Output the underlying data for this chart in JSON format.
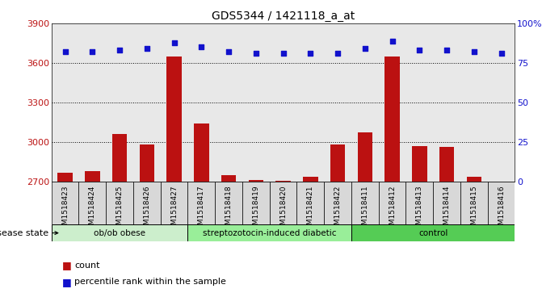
{
  "title": "GDS5344 / 1421118_a_at",
  "samples": [
    "GSM1518423",
    "GSM1518424",
    "GSM1518425",
    "GSM1518426",
    "GSM1518427",
    "GSM1518417",
    "GSM1518418",
    "GSM1518419",
    "GSM1518420",
    "GSM1518421",
    "GSM1518422",
    "GSM1518411",
    "GSM1518412",
    "GSM1518413",
    "GSM1518414",
    "GSM1518415",
    "GSM1518416"
  ],
  "counts": [
    2770,
    2780,
    3060,
    2980,
    3650,
    3140,
    2750,
    2710,
    2705,
    2740,
    2980,
    3075,
    3650,
    2970,
    2965,
    2735,
    2703
  ],
  "percentile_ranks": [
    82,
    82,
    83,
    84,
    88,
    85,
    82,
    81,
    81,
    81,
    81,
    84,
    89,
    83,
    83,
    82,
    81
  ],
  "groups": [
    {
      "label": "ob/ob obese",
      "start": 0,
      "end": 5
    },
    {
      "label": "streptozotocin-induced diabetic",
      "start": 5,
      "end": 11
    },
    {
      "label": "control",
      "start": 11,
      "end": 17
    }
  ],
  "group_colors": [
    "#cceecc",
    "#99ee99",
    "#55cc55"
  ],
  "ylim_left": [
    2700,
    3900
  ],
  "ylim_right": [
    0,
    100
  ],
  "yticks_left": [
    2700,
    3000,
    3300,
    3600,
    3900
  ],
  "yticks_right": [
    0,
    25,
    50,
    75,
    100
  ],
  "bar_color": "#bb1111",
  "dot_color": "#1111cc",
  "plot_bg_color": "#e8e8e8",
  "tick_label_bg": "#d0d0d0",
  "legend_count_label": "count",
  "legend_percentile_label": "percentile rank within the sample",
  "disease_state_label": "disease state"
}
